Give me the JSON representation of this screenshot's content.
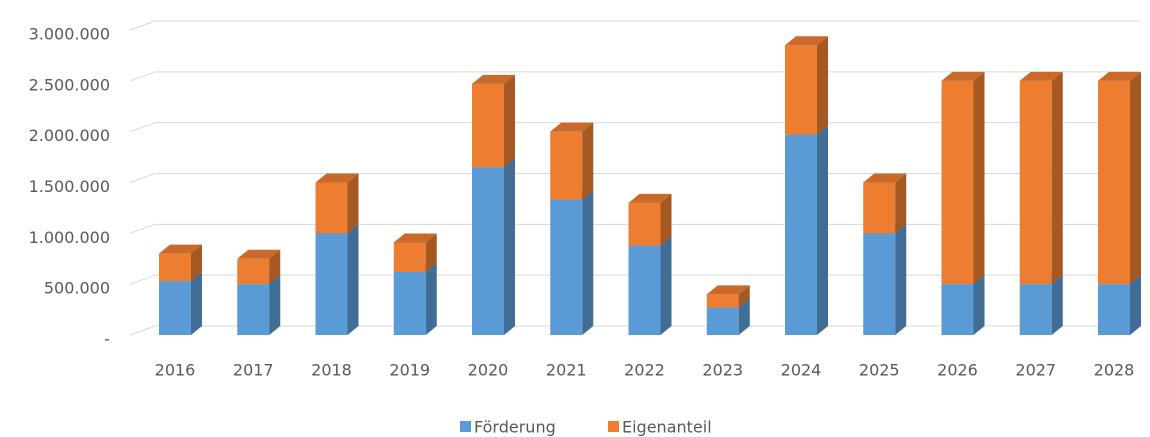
{
  "chart_data": {
    "type": "bar3d_stacked",
    "categories": [
      "2016",
      "2017",
      "2018",
      "2019",
      "2020",
      "2021",
      "2022",
      "2023",
      "2024",
      "2025",
      "2026",
      "2027",
      "2028"
    ],
    "series": [
      {
        "name": "Förderung",
        "color": "#5b9bd5",
        "values": [
          530000,
          500000,
          1000000,
          620000,
          1650000,
          1330000,
          880000,
          270000,
          1970000,
          1000000,
          500000,
          500000,
          500000
        ]
      },
      {
        "name": "Eigenanteil",
        "color": "#ed7d31",
        "values": [
          270000,
          250000,
          500000,
          290000,
          820000,
          670000,
          420000,
          130000,
          880000,
          500000,
          2000000,
          2000000,
          2000000
        ]
      }
    ],
    "ylim": [
      0,
      3000000
    ],
    "yticks": [
      {
        "value": 0,
        "label": "-"
      },
      {
        "value": 500000,
        "label": "500.000"
      },
      {
        "value": 1000000,
        "label": "1.000.000"
      },
      {
        "value": 1500000,
        "label": "1.500.000"
      },
      {
        "value": 2000000,
        "label": "2.000.000"
      },
      {
        "value": 2500000,
        "label": "2.500.000"
      },
      {
        "value": 3000000,
        "label": "3.000.000"
      }
    ],
    "grid": true,
    "legend": "bottom"
  }
}
